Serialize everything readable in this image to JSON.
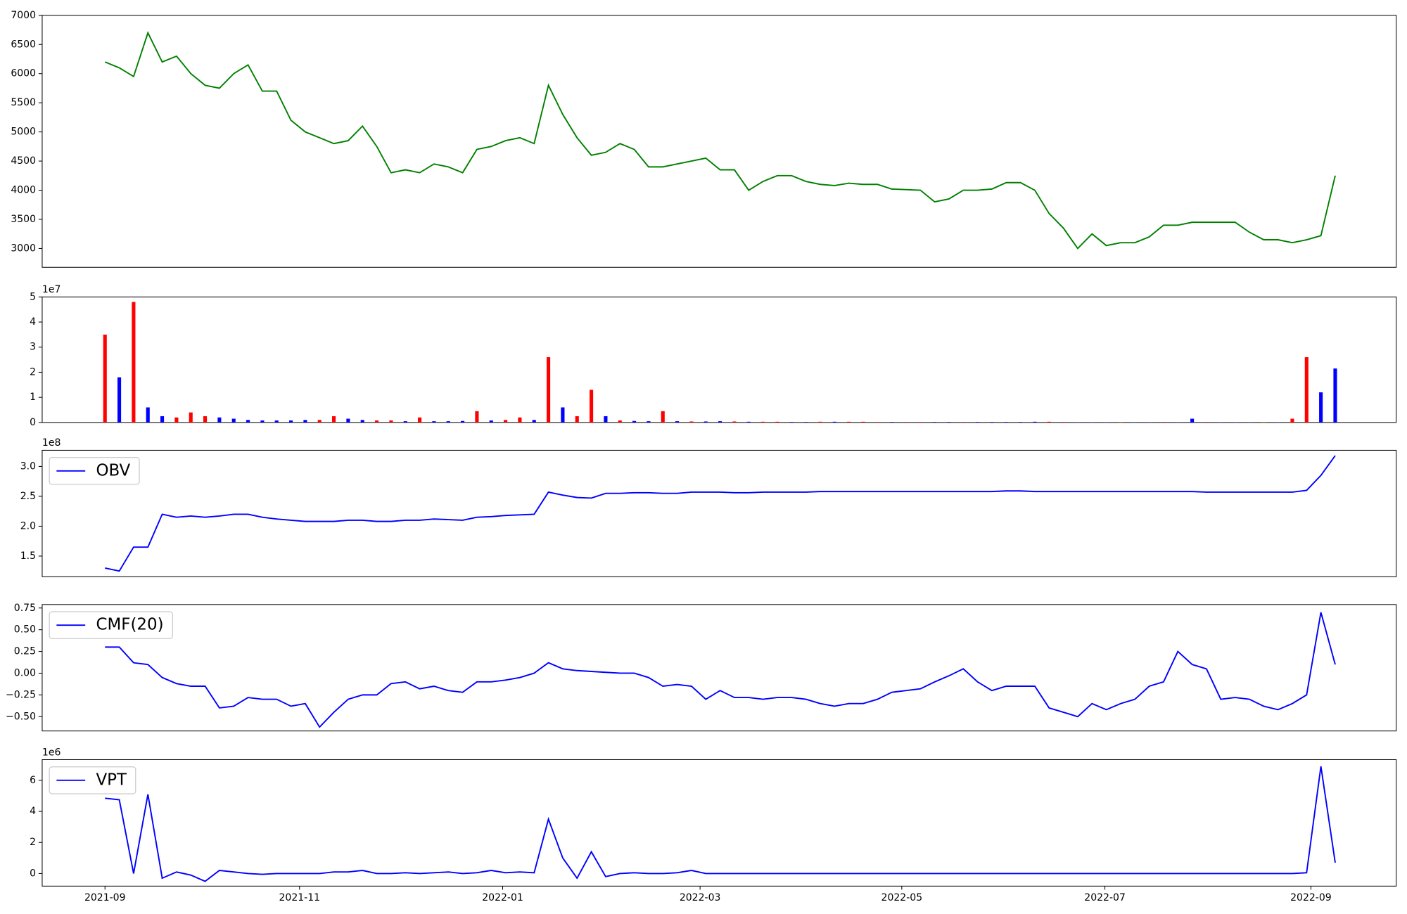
{
  "chart_data": [
    {
      "type": "line",
      "categories": [
        null,
        null,
        null,
        null,
        null,
        null,
        null,
        null,
        null,
        null,
        null,
        null,
        null,
        null,
        null,
        null,
        null,
        null,
        null,
        null,
        null,
        null,
        null,
        null,
        null,
        null,
        null,
        null,
        null,
        null,
        null,
        null,
        null,
        null,
        null,
        null,
        null,
        null,
        null,
        null,
        null,
        null,
        null,
        null,
        null,
        null,
        null,
        null,
        null,
        null,
        null,
        null,
        null,
        null,
        null,
        null,
        null,
        null,
        null,
        null,
        null,
        null,
        null,
        null,
        null,
        null,
        null,
        null,
        null,
        null,
        null,
        null,
        null,
        null,
        null,
        null,
        null,
        null,
        null,
        null,
        null,
        null,
        null,
        null,
        null,
        null,
        null
      ],
      "series": [
        {
          "color": "#008000",
          "values": [
            6200,
            6100,
            5950,
            6700,
            6200,
            6300,
            6000,
            5800,
            5750,
            6000,
            6150,
            5700,
            5700,
            5200,
            5000,
            4900,
            4800,
            4850,
            5100,
            4750,
            4300,
            4350,
            4300,
            4450,
            4400,
            4300,
            4700,
            4750,
            4850,
            4900,
            4800,
            5800,
            5300,
            4900,
            4600,
            4650,
            4800,
            4700,
            4400,
            4400,
            4450,
            4500,
            4550,
            4350,
            4350,
            4000,
            4150,
            4250,
            4250,
            4150,
            4100,
            4080,
            4120,
            4100,
            4100,
            4020,
            4010,
            4000,
            3800,
            3850,
            4000,
            4000,
            4020,
            4130,
            4130,
            4000,
            3600,
            3350,
            3000,
            3250,
            3050,
            3100,
            3100,
            3200,
            3400,
            3400,
            3450,
            3450,
            3450,
            3450,
            3280,
            3150,
            3150,
            3100,
            3150,
            3220,
            4250
          ]
        }
      ],
      "ylim": [
        2677,
        7000
      ],
      "yticks": [
        3000,
        3500,
        4000,
        4500,
        5000,
        5500,
        6000,
        6500,
        7000
      ]
    },
    {
      "type": "bar",
      "offset_label": "1e7",
      "categories": [
        null,
        null,
        null,
        null,
        null,
        null,
        null,
        null,
        null,
        null,
        null,
        null,
        null,
        null,
        null,
        null,
        null,
        null,
        null,
        null,
        null,
        null,
        null,
        null,
        null,
        null,
        null,
        null,
        null,
        null,
        null,
        null,
        null,
        null,
        null,
        null,
        null,
        null,
        null,
        null,
        null,
        null,
        null,
        null,
        null,
        null,
        null,
        null,
        null,
        null,
        null,
        null,
        null,
        null,
        null,
        null,
        null,
        null,
        null,
        null,
        null,
        null,
        null,
        null,
        null,
        null,
        null,
        null,
        null,
        null,
        null,
        null,
        null,
        null,
        null,
        null,
        null,
        null,
        null,
        null,
        null,
        null,
        null,
        null,
        null,
        null,
        null
      ],
      "series": [
        {
          "color": "#ff0000",
          "values": [
            3.5,
            null,
            4.8,
            null,
            null,
            0.2,
            0.4,
            0.25,
            null,
            null,
            null,
            null,
            null,
            null,
            null,
            0.1,
            0.25,
            null,
            null,
            0.08,
            0.08,
            null,
            0.2,
            null,
            null,
            null,
            0.45,
            null,
            0.1,
            0.2,
            null,
            2.6,
            null,
            0.25,
            1.3,
            null,
            0.08,
            null,
            null,
            0.45,
            null,
            0.04,
            null,
            null,
            0.04,
            null,
            0.03,
            0.03,
            null,
            null,
            0.03,
            null,
            0.03,
            0.03,
            0.02,
            null,
            0.02,
            0.02,
            null,
            null,
            0.02,
            null,
            null,
            null,
            null,
            null,
            0.03,
            0.02,
            null,
            null,
            null,
            0.01,
            null,
            null,
            0.02,
            null,
            null,
            0.02,
            null,
            null,
            null,
            0.01,
            null,
            0.15,
            2.6,
            null,
            null
          ]
        },
        {
          "color": "#0000ff",
          "values": [
            null,
            1.8,
            null,
            0.6,
            0.25,
            null,
            null,
            null,
            0.2,
            0.15,
            0.1,
            0.08,
            0.08,
            0.08,
            0.1,
            null,
            null,
            0.15,
            0.1,
            null,
            null,
            0.05,
            null,
            0.05,
            0.05,
            0.06,
            null,
            0.08,
            null,
            null,
            0.1,
            null,
            0.6,
            null,
            null,
            0.25,
            null,
            0.06,
            0.05,
            null,
            0.05,
            null,
            0.04,
            0.05,
            null,
            0.03,
            null,
            null,
            0.02,
            0.02,
            null,
            0.03,
            null,
            null,
            null,
            0.02,
            null,
            null,
            0.02,
            0.02,
            null,
            0.02,
            0.02,
            0.02,
            0.02,
            0.03,
            null,
            null,
            0.01,
            0.01,
            0.01,
            null,
            0.01,
            0.01,
            null,
            0.01,
            0.15,
            null,
            0.01,
            0.01,
            0.01,
            null,
            0.01,
            null,
            null,
            1.2,
            2.15
          ]
        }
      ],
      "ylim": [
        0,
        5
      ],
      "yticks": [
        0,
        1,
        2,
        3,
        4,
        5
      ]
    },
    {
      "type": "line",
      "offset_label": "1e8",
      "legend": "upper left",
      "categories": [
        null,
        null,
        null,
        null,
        null,
        null,
        null,
        null,
        null,
        null,
        null,
        null,
        null,
        null,
        null,
        null,
        null,
        null,
        null,
        null,
        null,
        null,
        null,
        null,
        null,
        null,
        null,
        null,
        null,
        null,
        null,
        null,
        null,
        null,
        null,
        null,
        null,
        null,
        null,
        null,
        null,
        null,
        null,
        null,
        null,
        null,
        null,
        null,
        null,
        null,
        null,
        null,
        null,
        null,
        null,
        null,
        null,
        null,
        null,
        null,
        null,
        null,
        null,
        null,
        null,
        null,
        null,
        null,
        null,
        null,
        null,
        null,
        null,
        null,
        null,
        null,
        null,
        null,
        null,
        null,
        null,
        null,
        null,
        null,
        null,
        null,
        null
      ],
      "series": [
        {
          "name": "OBV",
          "color": "#0000ff",
          "values": [
            1.3,
            1.25,
            1.65,
            1.65,
            2.2,
            2.15,
            2.17,
            2.15,
            2.17,
            2.2,
            2.2,
            2.15,
            2.12,
            2.1,
            2.08,
            2.08,
            2.08,
            2.1,
            2.1,
            2.08,
            2.08,
            2.1,
            2.1,
            2.12,
            2.11,
            2.1,
            2.15,
            2.16,
            2.18,
            2.19,
            2.2,
            2.57,
            2.52,
            2.48,
            2.47,
            2.55,
            2.55,
            2.56,
            2.56,
            2.55,
            2.55,
            2.57,
            2.57,
            2.57,
            2.56,
            2.56,
            2.57,
            2.57,
            2.57,
            2.57,
            2.58,
            2.58,
            2.58,
            2.58,
            2.58,
            2.58,
            2.58,
            2.58,
            2.58,
            2.58,
            2.58,
            2.58,
            2.58,
            2.59,
            2.59,
            2.58,
            2.58,
            2.58,
            2.58,
            2.58,
            2.58,
            2.58,
            2.58,
            2.58,
            2.58,
            2.58,
            2.58,
            2.57,
            2.57,
            2.57,
            2.57,
            2.57,
            2.57,
            2.57,
            2.6,
            2.85,
            3.18
          ]
        }
      ],
      "ylim": [
        1.155,
        3.27
      ],
      "yticks": [
        {
          "value": 1.5,
          "label": "1.5"
        },
        {
          "value": 2,
          "label": "2.0"
        },
        {
          "value": 2.5,
          "label": "2.5"
        },
        {
          "value": 3,
          "label": "3.0"
        }
      ]
    },
    {
      "type": "line",
      "legend": "upper left",
      "categories": [
        null,
        null,
        null,
        null,
        null,
        null,
        null,
        null,
        null,
        null,
        null,
        null,
        null,
        null,
        null,
        null,
        null,
        null,
        null,
        null,
        null,
        null,
        null,
        null,
        null,
        null,
        null,
        null,
        null,
        null,
        null,
        null,
        null,
        null,
        null,
        null,
        null,
        null,
        null,
        null,
        null,
        null,
        null,
        null,
        null,
        null,
        null,
        null,
        null,
        null,
        null,
        null,
        null,
        null,
        null,
        null,
        null,
        null,
        null,
        null,
        null,
        null,
        null,
        null,
        null,
        null,
        null,
        null,
        null,
        null,
        null,
        null,
        null,
        null,
        null,
        null,
        null,
        null,
        null,
        null,
        null,
        null,
        null,
        null,
        null,
        null,
        null
      ],
      "series": [
        {
          "name": "CMF(20)",
          "color": "#0000ff",
          "values": [
            0.3,
            0.3,
            0.12,
            0.1,
            -0.05,
            -0.12,
            -0.15,
            -0.15,
            -0.4,
            -0.38,
            -0.28,
            -0.3,
            -0.3,
            -0.38,
            -0.35,
            -0.62,
            -0.45,
            -0.3,
            -0.25,
            -0.25,
            -0.12,
            -0.1,
            -0.18,
            -0.15,
            -0.2,
            -0.22,
            -0.1,
            -0.1,
            -0.08,
            -0.05,
            0,
            0.12,
            0.05,
            0.03,
            0.02,
            0.01,
            0,
            0,
            -0.05,
            -0.15,
            -0.13,
            -0.15,
            -0.3,
            -0.2,
            -0.28,
            -0.28,
            -0.3,
            -0.28,
            -0.28,
            -0.3,
            -0.35,
            -0.38,
            -0.35,
            -0.35,
            -0.3,
            -0.22,
            -0.2,
            -0.18,
            -0.1,
            -0.03,
            0.05,
            -0.1,
            -0.2,
            -0.15,
            -0.15,
            -0.15,
            -0.4,
            -0.45,
            -0.5,
            -0.35,
            -0.42,
            -0.35,
            -0.3,
            -0.15,
            -0.1,
            0.25,
            0.1,
            0.05,
            -0.3,
            -0.28,
            -0.3,
            -0.38,
            -0.42,
            -0.35,
            -0.25,
            0.7,
            0.1
          ]
        }
      ],
      "ylim": [
        -0.665,
        0.79
      ],
      "yticks": [
        {
          "value": -0.5,
          "label": "−0.50"
        },
        {
          "value": -0.25,
          "label": "−0.25"
        },
        {
          "value": 0,
          "label": "0.00"
        },
        {
          "value": 0.25,
          "label": "0.25"
        },
        {
          "value": 0.5,
          "label": "0.50"
        },
        {
          "value": 0.75,
          "label": "0.75"
        }
      ]
    },
    {
      "type": "line",
      "offset_label": "1e6",
      "legend": "upper left",
      "categories": [
        null,
        null,
        null,
        null,
        null,
        null,
        null,
        null,
        null,
        null,
        null,
        null,
        null,
        null,
        null,
        null,
        null,
        null,
        null,
        null,
        null,
        null,
        null,
        null,
        null,
        null,
        null,
        null,
        null,
        null,
        null,
        null,
        null,
        null,
        null,
        null,
        null,
        null,
        null,
        null,
        null,
        null,
        null,
        null,
        null,
        null,
        null,
        null,
        null,
        null,
        null,
        null,
        null,
        null,
        null,
        null,
        null,
        null,
        null,
        null,
        null,
        null,
        null,
        null,
        null,
        null,
        null,
        null,
        null,
        null,
        null,
        null,
        null,
        null,
        null,
        null,
        null,
        null,
        null,
        null,
        null,
        null,
        null,
        null,
        null,
        null,
        null
      ],
      "series": [
        {
          "name": "VPT",
          "color": "#0000ff",
          "values": [
            4.85,
            4.75,
            0,
            5.1,
            -0.3,
            0.1,
            -0.1,
            -0.5,
            0.2,
            0.1,
            0,
            -0.05,
            0,
            0,
            0,
            0,
            0.1,
            0.1,
            0.2,
            0,
            0,
            0.05,
            0,
            0.05,
            0.1,
            0,
            0.05,
            0.2,
            0.05,
            0.1,
            0.05,
            3.5,
            1,
            -0.3,
            1.4,
            -0.2,
            0,
            0.05,
            0,
            0,
            0.05,
            0.2,
            0,
            0,
            0,
            0,
            0,
            0,
            0,
            0,
            0,
            0,
            0,
            0,
            0,
            0,
            0,
            0,
            0,
            0,
            0,
            0,
            0,
            0,
            0,
            0,
            0,
            0,
            0,
            0,
            0,
            0,
            0,
            0,
            0,
            0,
            0,
            0,
            0,
            0,
            0,
            0,
            0,
            0,
            0.05,
            6.9,
            0.7
          ]
        }
      ],
      "ylim": [
        -0.81,
        7.33
      ],
      "yticks": [
        0,
        2,
        4,
        6
      ],
      "xticks": [
        {
          "value": 0,
          "label": "2021-09"
        },
        {
          "value": 13.6,
          "label": "2021-11"
        },
        {
          "value": 27.8,
          "label": "2022-01"
        },
        {
          "value": 41.6,
          "label": "2022-03"
        },
        {
          "value": 55.7,
          "label": "2022-05"
        },
        {
          "value": 69.9,
          "label": "2022-07"
        },
        {
          "value": 84.3,
          "label": "2022-09"
        }
      ]
    }
  ]
}
